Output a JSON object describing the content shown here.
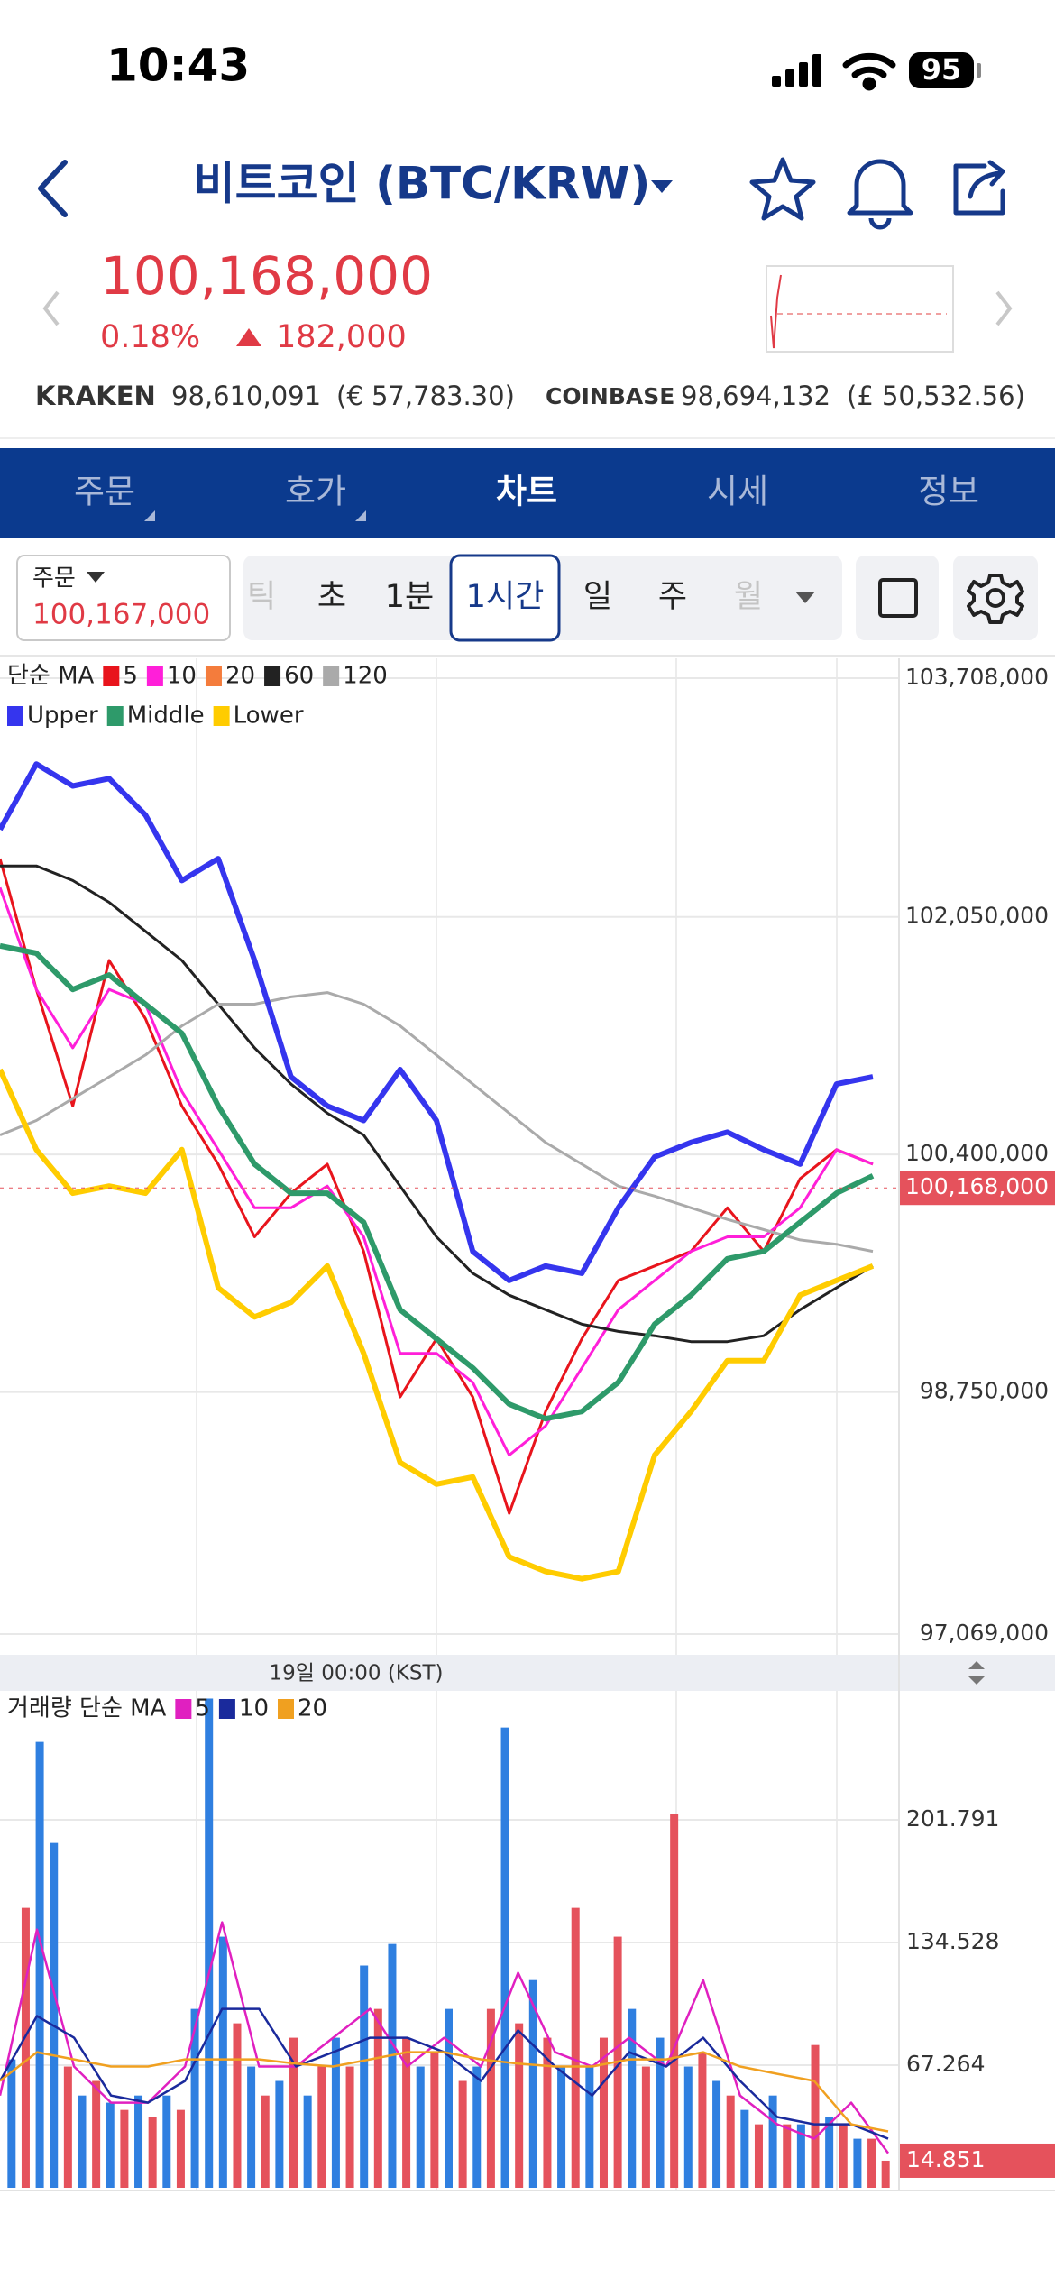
{
  "status_bar": {
    "time": "10:43",
    "battery": "95"
  },
  "header": {
    "title": "비트코인 (BTC/KRW)"
  },
  "ticker": {
    "price": "100,168,000",
    "change_percent": "0.18%",
    "change": "182,000",
    "exchanges": [
      {
        "name": "KRAKEN",
        "price": "98,610,091",
        "converted": "(€ 57,783.30)"
      },
      {
        "name": "COINBASE",
        "price": "98,694,132",
        "converted": "(£ 50,532.56)"
      }
    ]
  },
  "tabs": {
    "items": [
      "주문",
      "호가",
      "차트",
      "시세",
      "정보"
    ],
    "active": 2
  },
  "toolbar": {
    "order_label": "주문",
    "order_price": "100,167,000",
    "intervals": [
      "틱",
      "초",
      "1분",
      "1시간",
      "일",
      "주",
      "월"
    ],
    "selected_interval": 3
  },
  "chart_data": [
    {
      "type": "line",
      "legend_title": "단순 MA",
      "grid": true,
      "ylim": [
        96925000,
        103846000
      ],
      "yticks": [
        {
          "value": 97069000,
          "label": "97,069,000"
        },
        {
          "value": 98750000,
          "label": "98,750,000"
        },
        {
          "value": 100400000,
          "label": "100,400,000"
        },
        {
          "value": 102050000,
          "label": "102,050,000"
        },
        {
          "value": 103708000,
          "label": "103,708,000"
        }
      ],
      "current": {
        "value": 100168000,
        "label": "100,168,000"
      },
      "time_label": "19일 00:00 (KST)",
      "series": [
        {
          "name": "5",
          "color": "#e8141c",
          "values": [
            102455000,
            101546000,
            100737000,
            101748000,
            101343000,
            100737000,
            100333000,
            99828000,
            100131000,
            100333000,
            99727000,
            98716000,
            99120000,
            98716000,
            97908000,
            98615000,
            99120000,
            99525000,
            99626000,
            99727000,
            100030000,
            99727000,
            100232000,
            100434000,
            100333000
          ]
        },
        {
          "name": "10",
          "color": "#ff1fd9",
          "values": [
            102253000,
            101546000,
            101141000,
            101546000,
            101444000,
            100838000,
            100434000,
            100030000,
            100030000,
            100181000,
            99828000,
            99019000,
            99019000,
            98817000,
            98312000,
            98514000,
            98918000,
            99322000,
            99525000,
            99727000,
            99828000,
            99828000,
            100030000,
            100434000,
            100333000
          ]
        },
        {
          "name": "20",
          "color": "#f47c3c"
        },
        {
          "name": "60",
          "color": "#222222",
          "values": [
            102404000,
            102404000,
            102303000,
            102152000,
            101950000,
            101748000,
            101444000,
            101141000,
            100889000,
            100687000,
            100535000,
            100181000,
            99828000,
            99575000,
            99423000,
            99322000,
            99221000,
            99171000,
            99141000,
            99100000,
            99100000,
            99141000,
            99322000,
            99474000,
            99626000
          ]
        },
        {
          "name": "120",
          "color": "#aaaaaa",
          "values": [
            100535000,
            100636000,
            100788000,
            100939000,
            101091000,
            101293000,
            101444000,
            101444000,
            101495000,
            101525000,
            101444000,
            101293000,
            101091000,
            100889000,
            100687000,
            100484000,
            100333000,
            100181000,
            100111000,
            100030000,
            99949000,
            99878000,
            99807000,
            99777000,
            99727000
          ]
        }
      ],
      "bands": [
        {
          "name": "Upper",
          "color": "#3535ee",
          "values": [
            102657000,
            103112000,
            102960000,
            103011000,
            102758000,
            102303000,
            102455000,
            101748000,
            100939000,
            100737000,
            100636000,
            100990000,
            100636000,
            99727000,
            99525000,
            99626000,
            99575000,
            100030000,
            100383000,
            100484000,
            100555000,
            100434000,
            100333000,
            100889000,
            100939000
          ]
        },
        {
          "name": "Middle",
          "color": "#2e9a6a",
          "values": [
            101849000,
            101798000,
            101546000,
            101647000,
            101444000,
            101242000,
            100737000,
            100333000,
            100131000,
            100131000,
            99929000,
            99322000,
            99120000,
            98918000,
            98666000,
            98565000,
            98615000,
            98817000,
            99221000,
            99423000,
            99676000,
            99727000,
            99929000,
            100131000,
            100252000
          ]
        },
        {
          "name": "Lower",
          "color": "#ffcc00",
          "values": [
            100990000,
            100434000,
            100131000,
            100181000,
            100131000,
            100434000,
            99474000,
            99272000,
            99373000,
            99626000,
            99019000,
            98261000,
            98110000,
            98160000,
            97605000,
            97504000,
            97453000,
            97504000,
            98312000,
            98615000,
            98969000,
            98969000,
            99423000,
            99525000,
            99626000
          ]
        }
      ]
    },
    {
      "type": "bar",
      "legend_title": "거래량 단순 MA",
      "grid": true,
      "ylim": [
        0,
        272.5
      ],
      "yticks": [
        67.264,
        134.528,
        201.791
      ],
      "up_color": "#e5525c",
      "down_color": "#2f7fe0",
      "values": [
        70.4,
        153.5,
        244.5,
        189.1,
        66.5,
        50.6,
        58.6,
        46.7,
        42.7,
        50.6,
        38.8,
        50.6,
        42.7,
        98.1,
        268.3,
        137.7,
        90.2,
        66.5,
        50.6,
        58.6,
        82.3,
        50.6,
        66.5,
        82.3,
        66.5,
        121.9,
        98.1,
        133.7,
        82.3,
        66.5,
        74.4,
        98.1,
        58.6,
        66.5,
        98.1,
        252.4,
        90.2,
        113.9,
        82.3,
        66.5,
        153.5,
        66.5,
        82.3,
        137.7,
        98.1,
        66.5,
        82.3,
        204.9,
        66.5,
        74.4,
        58.6,
        50.6,
        42.7,
        34.8,
        50.6,
        34.8,
        34.8,
        78.3,
        38.8,
        34.8,
        26.9,
        26.9,
        14.851
      ],
      "directions": [
        "down",
        "up",
        "down",
        "down",
        "up",
        "down",
        "up",
        "down",
        "up",
        "down",
        "up",
        "down",
        "up",
        "down",
        "down",
        "down",
        "up",
        "down",
        "up",
        "down",
        "up",
        "down",
        "up",
        "down",
        "up",
        "down",
        "up",
        "down",
        "up",
        "down",
        "up",
        "down",
        "up",
        "down",
        "up",
        "down",
        "up",
        "down",
        "up",
        "down",
        "up",
        "down",
        "up",
        "up",
        "down",
        "up",
        "down",
        "up",
        "down",
        "up",
        "down",
        "up",
        "down",
        "up",
        "down",
        "up",
        "down",
        "up",
        "down",
        "up",
        "down",
        "up",
        "up"
      ],
      "series": [
        {
          "name": "5",
          "color": "#e020c0",
          "values": [
            50.6,
            141.6,
            66.5,
            46.7,
            46.7,
            66.5,
            145.6,
            66.5,
            66.5,
            82.3,
            98.1,
            66.5,
            82.3,
            66.5,
            117.9,
            74.4,
            66.5,
            82.3,
            66.5,
            113.9,
            50.6,
            34.8,
            26.9,
            46.7,
            19.0
          ]
        },
        {
          "name": "10",
          "color": "#1a2a9c",
          "values": [
            58.6,
            94.2,
            82.3,
            50.6,
            46.7,
            58.6,
            98.1,
            98.1,
            66.5,
            74.4,
            82.3,
            82.3,
            74.4,
            58.6,
            86.3,
            66.5,
            50.6,
            74.4,
            66.5,
            82.3,
            58.6,
            38.8,
            34.8,
            34.8,
            26.9
          ]
        },
        {
          "name": "20",
          "color": "#f0a020",
          "values": [
            58.6,
            74.4,
            70.4,
            66.5,
            66.5,
            70.4,
            70.4,
            70.4,
            68.1,
            66.5,
            70.4,
            74.4,
            74.4,
            70.4,
            68.1,
            66.5,
            66.5,
            70.4,
            70.4,
            74.4,
            66.5,
            62.5,
            58.6,
            34.8,
            30.9
          ]
        }
      ]
    }
  ]
}
